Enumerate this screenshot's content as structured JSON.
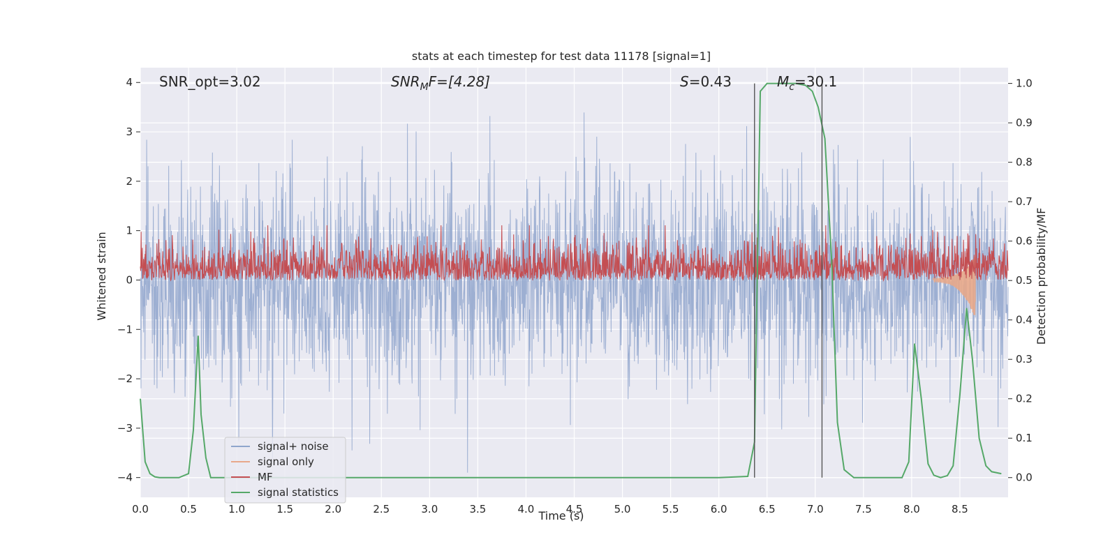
{
  "chart_data": {
    "type": "line",
    "title": "stats at each timestep for test data 11178 [signal=1]",
    "xlabel": "Time (s)",
    "ylabel_left": "Whitened strain",
    "ylabel_right": "Detection probability/MF",
    "xlim": [
      0.0,
      9.0
    ],
    "ylim_left": [
      -4.4,
      4.3
    ],
    "ylim_right": [
      -0.05,
      1.04
    ],
    "xticks": [
      "0.0",
      "0.5",
      "1.0",
      "1.5",
      "2.0",
      "2.5",
      "3.0",
      "3.5",
      "4.0",
      "4.5",
      "5.0",
      "5.5",
      "6.0",
      "6.5",
      "7.0",
      "7.5",
      "8.0",
      "8.5"
    ],
    "yticks_left": [
      "4",
      "3",
      "2",
      "1",
      "0",
      "−1",
      "−2",
      "−3",
      "−4"
    ],
    "yticks_right": [
      "1.0",
      "0.9",
      "0.8",
      "0.7",
      "0.6",
      "0.5",
      "0.4",
      "0.3",
      "0.2",
      "0.1",
      "0.0"
    ],
    "annotations": {
      "snr_opt": "SNR_opt=3.02",
      "snr_mf_main": "SNR",
      "snr_mf_sub": "M",
      "snr_mf_rest": "F=[4.28]",
      "s_main": "S",
      "s_rest": "=0.43",
      "mc_main": "M",
      "mc_sub": "c",
      "mc_rest": "=30.1"
    },
    "vlines_x": [
      6.37,
      7.07
    ],
    "legend": {
      "placement": "lower-left",
      "entries": [
        {
          "label": "signal+ noise",
          "color": "#8fa5cc"
        },
        {
          "label": "signal only",
          "color": "#e8a88a"
        },
        {
          "label": "MF",
          "color": "#c44e52"
        },
        {
          "label": "signal statistics",
          "color": "#55a868"
        }
      ]
    },
    "series": [
      {
        "name": "signal+ noise",
        "axis": "left",
        "note": "whitened noisy strain, approx. gaussian, range about -3.9 to 3.8"
      },
      {
        "name": "signal only",
        "axis": "left",
        "note": "chirp visible near 8.3-8.65 s, amplitude up to about 0.6"
      },
      {
        "name": "MF",
        "axis": "right",
        "note": "matched filter output, mostly between 0.50 and 0.64, peak about 0.62"
      },
      {
        "name": "signal statistics",
        "axis": "right",
        "x": [
          0.0,
          0.05,
          0.1,
          0.15,
          0.2,
          0.3,
          0.4,
          0.5,
          0.55,
          0.6,
          0.63,
          0.68,
          0.73,
          0.8,
          1.0,
          2.0,
          3.0,
          4.0,
          5.0,
          6.0,
          6.3,
          6.37,
          6.43,
          6.5,
          6.6,
          6.7,
          6.8,
          6.9,
          6.97,
          7.03,
          7.1,
          7.17,
          7.23,
          7.3,
          7.4,
          7.5,
          7.6,
          7.7,
          7.8,
          7.9,
          7.97,
          8.03,
          8.1,
          8.17,
          8.23,
          8.3,
          8.37,
          8.43,
          8.5,
          8.57,
          8.63,
          8.7,
          8.77,
          8.83,
          8.93
        ],
        "values": [
          0.2,
          0.04,
          0.01,
          0.002,
          0.0,
          0.0,
          0.0,
          0.01,
          0.12,
          0.36,
          0.16,
          0.05,
          0.0,
          0.0,
          0.0,
          0.0,
          0.0,
          0.0,
          0.0,
          0.0,
          0.003,
          0.09,
          0.98,
          1.0,
          1.0,
          1.0,
          1.0,
          0.995,
          0.98,
          0.94,
          0.86,
          0.55,
          0.14,
          0.02,
          0.0,
          0.0,
          0.0,
          0.0,
          0.0,
          0.0,
          0.04,
          0.34,
          0.2,
          0.035,
          0.006,
          0.0,
          0.005,
          0.03,
          0.21,
          0.43,
          0.3,
          0.1,
          0.03,
          0.015,
          0.01
        ]
      }
    ]
  }
}
